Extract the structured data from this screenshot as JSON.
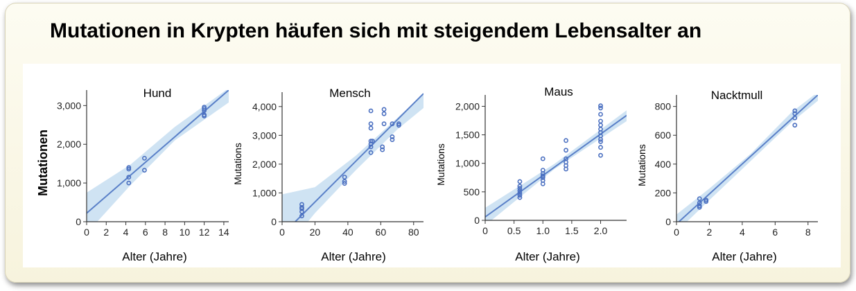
{
  "title": "Mutationen in Krypten häufen sich mit steigendem Lebensalter an",
  "colors": {
    "point": "#4a6fc0",
    "line": "#5a80c8",
    "band": "#cfe3f3"
  },
  "chart_data": [
    {
      "type": "scatter",
      "title": "Hund",
      "xlabel": "Alter (Jahre)",
      "ylabel": "Mutationen",
      "xlim": [
        0,
        14.5
      ],
      "ylim": [
        0,
        3400
      ],
      "xticks": [
        0,
        2,
        4,
        6,
        8,
        10,
        12,
        14
      ],
      "yticks": [
        0,
        1000,
        2000,
        3000
      ],
      "ytick_labels": [
        "0",
        "1,000",
        "2,000",
        "3,000"
      ],
      "points": [
        [
          4.3,
          1400
        ],
        [
          4.3,
          1360
        ],
        [
          4.3,
          1150
        ],
        [
          4.3,
          1000
        ],
        [
          5.9,
          1640
        ],
        [
          5.9,
          1330
        ],
        [
          12,
          2960
        ],
        [
          12,
          2920
        ],
        [
          12,
          2870
        ],
        [
          12,
          2760
        ],
        [
          12,
          2730
        ]
      ],
      "fit": {
        "x0": 0,
        "y0": 220,
        "x1": 14.5,
        "y1": 3400
      },
      "band_upper": [
        [
          0,
          750
        ],
        [
          4.5,
          1480
        ],
        [
          9,
          2450
        ],
        [
          14.5,
          3450
        ]
      ],
      "band_lower": [
        [
          0,
          -300
        ],
        [
          4.5,
          950
        ],
        [
          9,
          2100
        ],
        [
          14.5,
          3080
        ]
      ]
    },
    {
      "type": "scatter",
      "title": "Mensch",
      "xlabel": "Alter (Jahre)",
      "ylabel": "Mutations",
      "xlim": [
        0,
        86
      ],
      "ylim": [
        0,
        4500
      ],
      "xticks": [
        0,
        20,
        40,
        60,
        80
      ],
      "yticks": [
        0,
        1000,
        2000,
        3000,
        4000
      ],
      "ytick_labels": [
        "0",
        "1,000",
        "2,000",
        "3,000",
        "4,000"
      ],
      "points": [
        [
          12,
          600
        ],
        [
          12,
          500
        ],
        [
          12,
          450
        ],
        [
          12,
          350
        ],
        [
          12,
          200
        ],
        [
          38,
          1550
        ],
        [
          38,
          1400
        ],
        [
          38,
          1330
        ],
        [
          54,
          3850
        ],
        [
          54,
          3400
        ],
        [
          54,
          3250
        ],
        [
          54,
          2800
        ],
        [
          54,
          2700
        ],
        [
          54,
          2600
        ],
        [
          54,
          2400
        ],
        [
          55,
          2800
        ],
        [
          61,
          2600
        ],
        [
          61,
          2500
        ],
        [
          62,
          3900
        ],
        [
          62,
          3750
        ],
        [
          62,
          3400
        ],
        [
          67,
          3400
        ],
        [
          67,
          2950
        ],
        [
          67,
          2850
        ],
        [
          71,
          3400
        ],
        [
          71,
          3350
        ]
      ],
      "fit": {
        "x0": 8,
        "y0": 0,
        "x1": 86,
        "y1": 4450
      },
      "band_upper": [
        [
          0,
          950
        ],
        [
          20,
          1200
        ],
        [
          45,
          2300
        ],
        [
          70,
          3600
        ],
        [
          86,
          4450
        ]
      ],
      "band_lower": [
        [
          0,
          -1100
        ],
        [
          20,
          300
        ],
        [
          45,
          1800
        ],
        [
          70,
          3200
        ],
        [
          86,
          3950
        ]
      ]
    },
    {
      "type": "scatter",
      "title": "Maus",
      "xlabel": "Alter (Jahre)",
      "ylabel": "Mutations",
      "xlim": [
        0,
        2.45
      ],
      "ylim": [
        0,
        2200
      ],
      "xticks": [
        0,
        0.5,
        1.0,
        1.5,
        2.0
      ],
      "xtick_labels": [
        "0",
        "0.5",
        "1.0",
        "1.5",
        "2.0"
      ],
      "yticks": [
        0,
        500,
        1000,
        1500,
        2000
      ],
      "ytick_labels": [
        "0",
        "500",
        "1,000",
        "1,500",
        "2,000"
      ],
      "points": [
        [
          0.6,
          680
        ],
        [
          0.6,
          600
        ],
        [
          0.6,
          560
        ],
        [
          0.6,
          520
        ],
        [
          0.6,
          480
        ],
        [
          0.6,
          440
        ],
        [
          0.6,
          400
        ],
        [
          1.0,
          1080
        ],
        [
          1.0,
          880
        ],
        [
          1.0,
          820
        ],
        [
          1.0,
          780
        ],
        [
          1.0,
          750
        ],
        [
          1.0,
          700
        ],
        [
          1.0,
          640
        ],
        [
          1.4,
          1400
        ],
        [
          1.4,
          1230
        ],
        [
          1.4,
          1080
        ],
        [
          1.4,
          1020
        ],
        [
          1.4,
          960
        ],
        [
          1.4,
          900
        ],
        [
          2.0,
          2010
        ],
        [
          2.0,
          1970
        ],
        [
          2.0,
          1860
        ],
        [
          2.0,
          1740
        ],
        [
          2.0,
          1670
        ],
        [
          2.0,
          1600
        ],
        [
          2.0,
          1540
        ],
        [
          2.0,
          1480
        ],
        [
          2.0,
          1420
        ],
        [
          2.0,
          1380
        ],
        [
          2.0,
          1280
        ],
        [
          2.0,
          1140
        ]
      ],
      "fit": {
        "x0": 0,
        "y0": 60,
        "x1": 2.45,
        "y1": 1840
      },
      "band_upper": [
        [
          0,
          220
        ],
        [
          1.2,
          990
        ],
        [
          2.45,
          1930
        ]
      ],
      "band_lower": [
        [
          0,
          -90
        ],
        [
          1.2,
          900
        ],
        [
          2.45,
          1740
        ]
      ]
    },
    {
      "type": "scatter",
      "title": "Nacktmull",
      "xlabel": "Alter (Jahre)",
      "ylabel": "Mutations",
      "xlim": [
        0,
        8.6
      ],
      "ylim": [
        0,
        880
      ],
      "xticks": [
        0,
        2,
        4,
        6,
        8
      ],
      "yticks": [
        0,
        200,
        400,
        600,
        800
      ],
      "ytick_labels": [
        "0",
        "200",
        "400",
        "600",
        "800"
      ],
      "points": [
        [
          1.4,
          160
        ],
        [
          1.4,
          130
        ],
        [
          1.4,
          110
        ],
        [
          1.4,
          100
        ],
        [
          1.8,
          150
        ],
        [
          1.8,
          140
        ],
        [
          7.2,
          770
        ],
        [
          7.2,
          750
        ],
        [
          7.2,
          720
        ],
        [
          7.2,
          670
        ]
      ],
      "fit": {
        "x0": 0.15,
        "y0": 0,
        "x1": 8.6,
        "y1": 880
      },
      "band_upper": [
        [
          0,
          50
        ],
        [
          2,
          230
        ],
        [
          4.5,
          470
        ],
        [
          7,
          760
        ],
        [
          8.6,
          900
        ]
      ],
      "band_lower": [
        [
          0,
          -70
        ],
        [
          2,
          150
        ],
        [
          4.5,
          420
        ],
        [
          7,
          690
        ],
        [
          8.6,
          840
        ]
      ]
    }
  ]
}
